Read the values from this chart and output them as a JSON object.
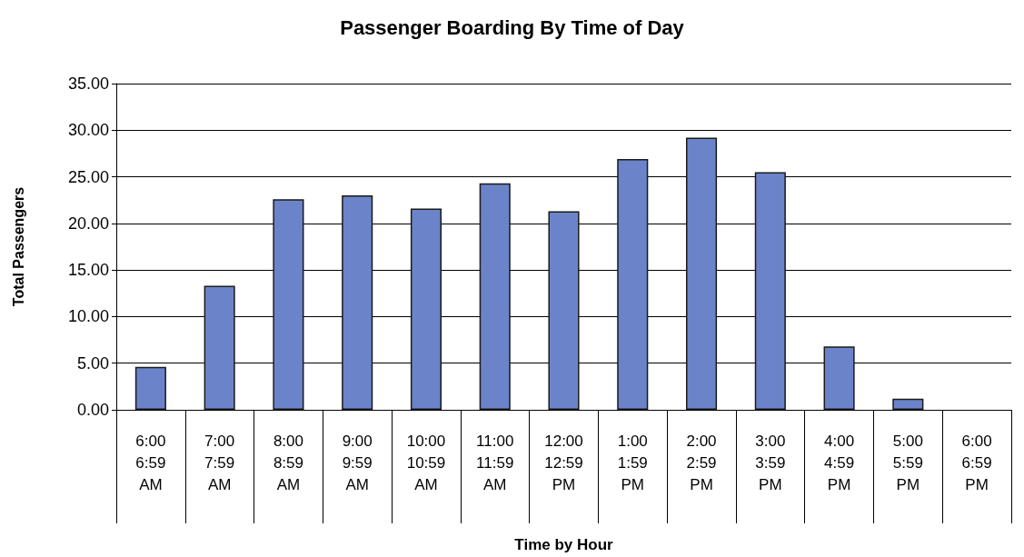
{
  "chart_data": {
    "type": "bar",
    "title": "Passenger Boarding By Time of Day",
    "xlabel": "Time by Hour",
    "ylabel": "Total Passengers",
    "categories": [
      "6:00\n6:59 AM",
      "7:00\n7:59 AM",
      "8:00\n8:59 AM",
      "9:00\n9:59 AM",
      "10:00\n10:59 AM",
      "11:00\n11:59 AM",
      "12:00\n12:59 PM",
      "1:00\n1:59 PM",
      "2:00\n2:59 PM",
      "3:00\n3:59 PM",
      "4:00\n4:59 PM",
      "5:00\n5:59 PM",
      "6:00\n6:59 PM"
    ],
    "values": [
      4.6,
      13.3,
      22.6,
      23.0,
      21.6,
      24.3,
      21.3,
      26.9,
      29.2,
      25.5,
      6.8,
      1.2,
      null
    ],
    "color": "#6b84c9",
    "ylim": [
      0,
      35
    ],
    "yticks": [
      {
        "value": 0,
        "label": "0.00"
      },
      {
        "value": 5,
        "label": "5.00"
      },
      {
        "value": 10,
        "label": "10.00"
      },
      {
        "value": 15,
        "label": "15.00"
      },
      {
        "value": 20,
        "label": "20.00"
      },
      {
        "value": 25,
        "label": "25.00"
      },
      {
        "value": 30,
        "label": "30.00"
      },
      {
        "value": 35,
        "label": "35.00"
      }
    ],
    "grid": "y"
  }
}
